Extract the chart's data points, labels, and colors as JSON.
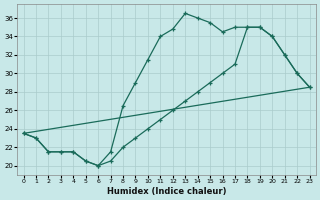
{
  "background_color": "#c8e8e8",
  "grid_color": "#aacccc",
  "line_color": "#1a6b5a",
  "xlabel": "Humidex (Indice chaleur)",
  "xlim": [
    -0.5,
    23.5
  ],
  "ylim": [
    19.0,
    37.5
  ],
  "xticks": [
    0,
    1,
    2,
    3,
    4,
    5,
    6,
    7,
    8,
    9,
    10,
    11,
    12,
    13,
    14,
    15,
    16,
    17,
    18,
    19,
    20,
    21,
    22,
    23
  ],
  "yticks": [
    20,
    22,
    24,
    26,
    28,
    30,
    32,
    34,
    36
  ],
  "curve1_x": [
    0,
    1,
    2,
    3,
    4,
    5,
    6,
    7,
    8,
    9,
    10,
    11,
    12,
    13,
    14,
    15,
    16,
    17,
    18,
    19,
    20,
    21,
    22,
    23
  ],
  "curve1_y": [
    23.5,
    23.0,
    21.5,
    21.5,
    21.5,
    20.5,
    20.0,
    21.5,
    26.5,
    29.0,
    31.5,
    34.0,
    34.8,
    36.5,
    36.0,
    35.5,
    34.5,
    35.0,
    35.0,
    35.0,
    34.0,
    32.0,
    30.0,
    28.5
  ],
  "curve2_x": [
    0,
    1,
    2,
    3,
    4,
    5,
    6,
    7,
    8,
    9,
    10,
    11,
    12,
    13,
    14,
    15,
    16,
    17,
    18,
    19,
    20,
    21,
    22,
    23
  ],
  "curve2_y": [
    23.5,
    23.0,
    21.5,
    21.5,
    21.5,
    20.5,
    20.0,
    20.5,
    22.0,
    23.0,
    24.0,
    25.0,
    26.0,
    27.0,
    28.0,
    29.0,
    30.0,
    31.0,
    35.0,
    35.0,
    34.0,
    32.0,
    30.0,
    28.5
  ],
  "line3_x": [
    0,
    23
  ],
  "line3_y": [
    23.5,
    28.5
  ]
}
